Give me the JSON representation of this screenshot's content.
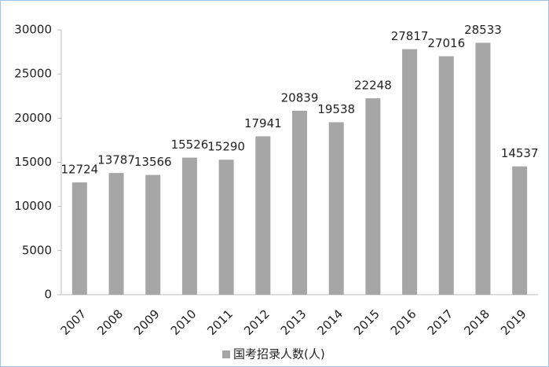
{
  "chart_data": {
    "type": "bar",
    "categories": [
      "2007",
      "2008",
      "2009",
      "2010",
      "2011",
      "2012",
      "2013",
      "2014",
      "2015",
      "2016",
      "2017",
      "2018",
      "2019"
    ],
    "series": [
      {
        "name": "国考招录人数(人)",
        "color": "#a6a6a6",
        "values": [
          12724,
          13787,
          13566,
          15526,
          15290,
          17941,
          20839,
          19538,
          22248,
          27817,
          27016,
          28533,
          14537
        ]
      }
    ],
    "ylim": [
      0,
      30000
    ],
    "yticks": [
      0,
      5000,
      10000,
      15000,
      20000,
      25000,
      30000
    ],
    "grid": false,
    "legend": "bottom"
  }
}
